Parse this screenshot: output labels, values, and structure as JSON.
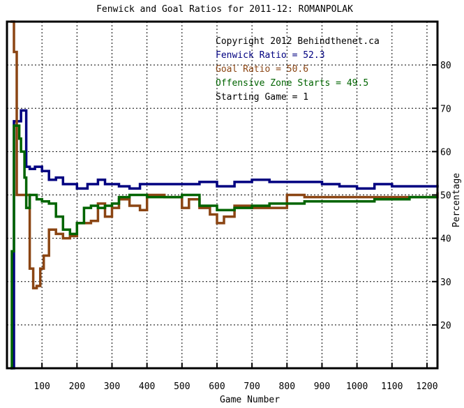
{
  "chart_data": {
    "type": "line",
    "title": "Fenwick and Goal Ratios for 2011-12: ROMANPOLAK",
    "xlabel": "Game Number",
    "ylabel": "Percentage",
    "xlim": [
      0,
      1230
    ],
    "ylim": [
      10,
      90
    ],
    "x_ticks": [
      100,
      200,
      300,
      400,
      500,
      600,
      700,
      800,
      900,
      1000,
      1100,
      1200
    ],
    "y_ticks": [
      20,
      30,
      40,
      50,
      60,
      70,
      80
    ],
    "grid": true,
    "legend_position": "top-right",
    "annotations": [
      {
        "text": "Copyright 2012 Behindthenet.ca",
        "color": "#000000"
      },
      {
        "text": "Fenwick Ratio = 52.3",
        "color": "#000080"
      },
      {
        "text": "Goal Ratio = 50.6",
        "color": "#8b4513"
      },
      {
        "text": "Offensive Zone Starts = 49.5",
        "color": "#006400"
      },
      {
        "text": "Starting Game = 1",
        "color": "#000000"
      }
    ],
    "series": [
      {
        "name": "Fenwick Ratio",
        "color": "#000080",
        "x": [
          10,
          20,
          28,
          40,
          45,
          55,
          65,
          80,
          100,
          120,
          140,
          160,
          180,
          200,
          230,
          260,
          280,
          300,
          320,
          350,
          380,
          400,
          450,
          500,
          550,
          600,
          650,
          700,
          750,
          800,
          850,
          900,
          950,
          1000,
          1050,
          1100,
          1150,
          1200,
          1230
        ],
        "y": [
          10,
          67,
          67,
          69.5,
          69.5,
          56.5,
          56,
          56.5,
          55.5,
          53.5,
          54,
          52.5,
          52.5,
          51.5,
          52.5,
          53.5,
          52.5,
          52.5,
          52,
          51.5,
          52.5,
          52.5,
          52.5,
          52.5,
          53,
          52,
          53,
          53.5,
          53,
          53,
          53,
          52.5,
          52,
          51.5,
          52.5,
          52,
          52,
          52,
          52.3
        ]
      },
      {
        "name": "Goal Ratio",
        "color": "#8b4513",
        "x": [
          10,
          14,
          20,
          28,
          32,
          40,
          50,
          60,
          65,
          75,
          85,
          95,
          105,
          120,
          140,
          160,
          180,
          200,
          220,
          240,
          260,
          280,
          300,
          320,
          350,
          380,
          400,
          450,
          500,
          520,
          550,
          580,
          600,
          620,
          650,
          700,
          750,
          800,
          850,
          900,
          950,
          1000,
          1050,
          1100,
          1150,
          1200,
          1230
        ],
        "y": [
          90,
          90,
          83,
          50,
          50,
          50,
          50,
          50,
          33,
          28.5,
          29,
          33,
          36,
          42,
          41,
          40,
          40.5,
          43.5,
          43.5,
          44,
          48,
          45,
          47,
          49,
          47.5,
          46.5,
          50,
          49.5,
          47,
          49,
          47,
          45.5,
          43.5,
          45,
          47.5,
          47,
          47,
          50,
          49.5,
          49.5,
          49.5,
          49.5,
          49.5,
          49.5,
          49.5,
          49.5,
          50.6
        ]
      },
      {
        "name": "Offensive Zone Starts",
        "color": "#006400",
        "x": [
          10,
          14,
          20,
          28,
          35,
          40,
          50,
          55,
          65,
          75,
          85,
          100,
          120,
          140,
          160,
          180,
          200,
          220,
          240,
          260,
          280,
          300,
          320,
          350,
          400,
          450,
          500,
          550,
          600,
          650,
          700,
          750,
          800,
          850,
          900,
          950,
          1000,
          1050,
          1100,
          1150,
          1200,
          1230
        ],
        "y": [
          10,
          37,
          66,
          66,
          63,
          60,
          54,
          47,
          50,
          50,
          49,
          48.5,
          48,
          45,
          42,
          41,
          43.5,
          47,
          47.5,
          47,
          47.5,
          48,
          49.5,
          50,
          49.5,
          49.5,
          50,
          47.5,
          46.5,
          47,
          47.5,
          48,
          48,
          48.5,
          48.5,
          48.5,
          48.5,
          49,
          49,
          49.5,
          49.5,
          49.5
        ]
      }
    ]
  }
}
